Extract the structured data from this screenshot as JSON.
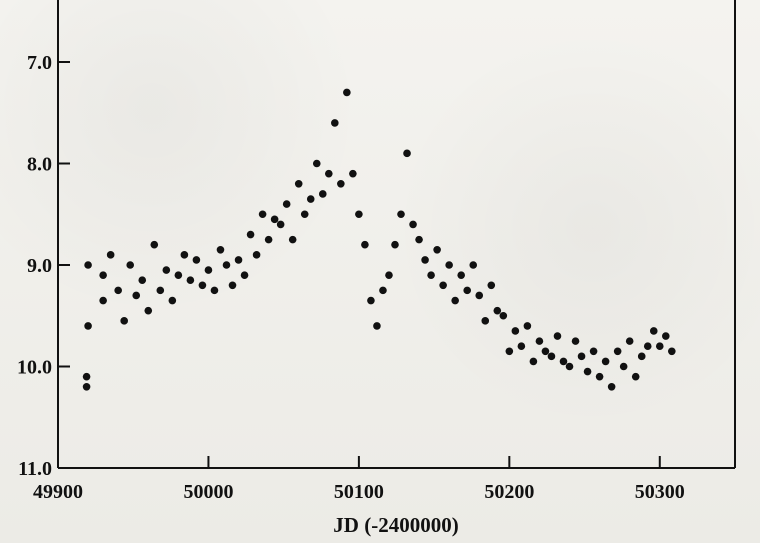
{
  "chart_data": {
    "type": "scatter",
    "title": "",
    "xlabel": "JD (-2400000)",
    "ylabel": "",
    "xlim": [
      49900,
      50350
    ],
    "ylim": [
      7.0,
      11.0
    ],
    "y_inverted": true,
    "grid": false,
    "x_ticks": [
      "49900",
      "50000",
      "50100",
      "50200",
      "50300"
    ],
    "y_ticks": [
      "7.0",
      "8.0",
      "9.0",
      "10.0",
      "11.0"
    ],
    "series": [
      {
        "name": "",
        "x": [
          49919,
          49919,
          49920,
          49920,
          49930,
          49930,
          49935,
          49940,
          49944,
          49948,
          49952,
          49956,
          49960,
          49964,
          49968,
          49972,
          49976,
          49980,
          49984,
          49988,
          49992,
          49996,
          50000,
          50004,
          50008,
          50012,
          50016,
          50020,
          50024,
          50028,
          50032,
          50036,
          50040,
          50044,
          50048,
          50052,
          50056,
          50060,
          50064,
          50068,
          50072,
          50076,
          50080,
          50084,
          50088,
          50092,
          50096,
          50100,
          50104,
          50108,
          50112,
          50116,
          50120,
          50124,
          50128,
          50132,
          50136,
          50140,
          50144,
          50148,
          50152,
          50156,
          50160,
          50164,
          50168,
          50172,
          50176,
          50180,
          50184,
          50188,
          50192,
          50196,
          50200,
          50204,
          50208,
          50212,
          50216,
          50220,
          50224,
          50228,
          50232,
          50236,
          50240,
          50244,
          50248,
          50252,
          50256,
          50260,
          50264,
          50268,
          50272,
          50276,
          50280,
          50284,
          50288,
          50292,
          50296,
          50300,
          50304,
          50308
        ],
        "y": [
          10.1,
          10.2,
          9.0,
          9.6,
          9.1,
          9.35,
          8.9,
          9.25,
          9.55,
          9.0,
          9.3,
          9.15,
          9.45,
          8.8,
          9.25,
          9.05,
          9.35,
          9.1,
          8.9,
          9.15,
          8.95,
          9.2,
          9.05,
          9.25,
          8.85,
          9.0,
          9.2,
          8.95,
          9.1,
          8.7,
          8.9,
          8.5,
          8.75,
          8.55,
          8.6,
          8.4,
          8.75,
          8.2,
          8.5,
          8.35,
          8.0,
          8.3,
          8.1,
          7.6,
          8.2,
          7.3,
          8.1,
          8.5,
          8.8,
          9.35,
          9.6,
          9.25,
          9.1,
          8.8,
          8.5,
          7.9,
          8.6,
          8.75,
          8.95,
          9.1,
          8.85,
          9.2,
          9.0,
          9.35,
          9.1,
          9.25,
          9.0,
          9.3,
          9.55,
          9.2,
          9.45,
          9.5,
          9.85,
          9.65,
          9.8,
          9.6,
          9.95,
          9.75,
          9.85,
          9.9,
          9.7,
          9.95,
          10.0,
          9.75,
          9.9,
          10.05,
          9.85,
          10.1,
          9.95,
          10.2,
          9.85,
          10.0,
          9.75,
          10.1,
          9.9,
          9.8,
          9.65,
          9.8,
          9.7,
          9.85
        ]
      }
    ]
  }
}
